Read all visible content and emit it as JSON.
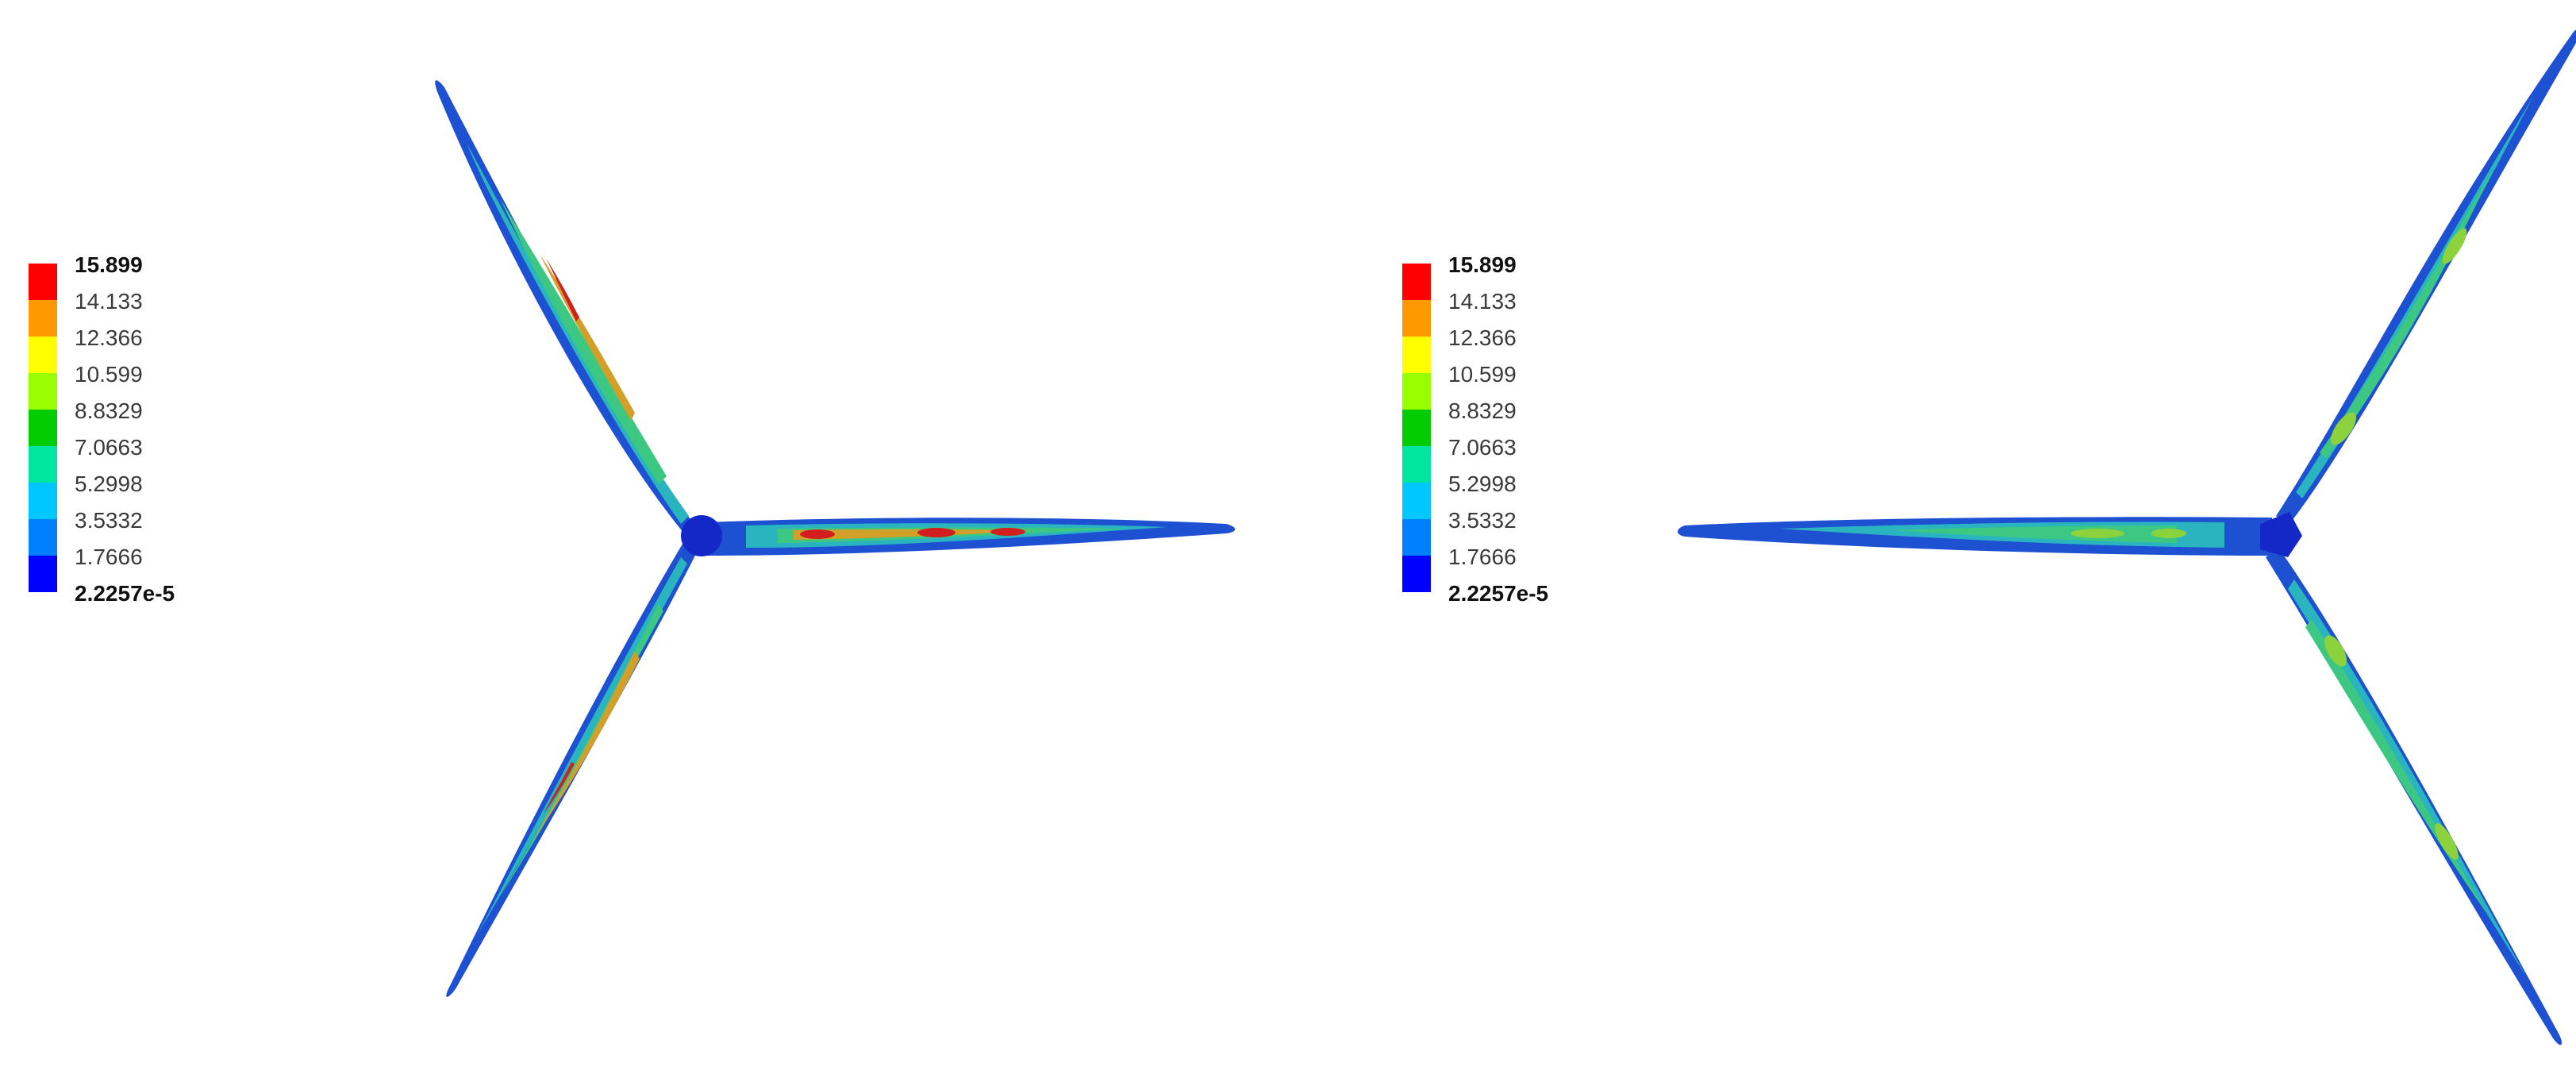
{
  "legend": {
    "labels": [
      "15.899",
      "14.133",
      "12.366",
      "10.599",
      "8.8329",
      "7.0663",
      "5.2998",
      "3.5332",
      "1.7666",
      "2.2257e-5"
    ],
    "colors": [
      "#ff0000",
      "#ff9900",
      "#ffff00",
      "#99ff00",
      "#00cc00",
      "#00e6a0",
      "#00c8ff",
      "#0080ff",
      "#0000ff"
    ]
  },
  "contour_colors": {
    "low": "#1428c8",
    "mid_low": "#1e8cd2",
    "mid": "#28c8a0",
    "mid_high": "#8cd23c",
    "high": "#e6a01e",
    "max": "#d21e1e"
  }
}
